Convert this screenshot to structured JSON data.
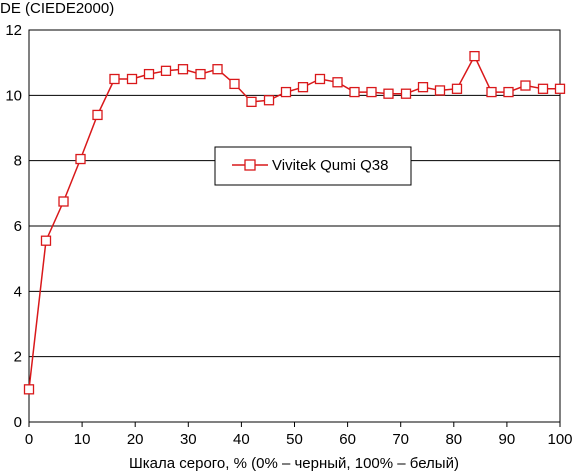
{
  "chart_data": {
    "type": "line",
    "ylabel": "DE (CIEDE2000)",
    "xlabel": "Шкала серого, % (0% – черный, 100% – белый)",
    "xlim": [
      0,
      100
    ],
    "ylim": [
      0,
      12
    ],
    "xticks": [
      0,
      10,
      20,
      30,
      40,
      50,
      60,
      70,
      80,
      90,
      100
    ],
    "yticks": [
      0,
      2,
      4,
      6,
      8,
      10,
      12
    ],
    "grid": "horizontal",
    "legend_position": "center",
    "series": [
      {
        "name": "Vivitek Qumi Q38",
        "color": "#d9181a",
        "marker": "square",
        "x": [
          0,
          3.2,
          6.5,
          9.7,
          12.9,
          16.1,
          19.4,
          22.6,
          25.8,
          29.0,
          32.3,
          35.5,
          38.7,
          41.9,
          45.2,
          48.4,
          51.6,
          54.8,
          58.1,
          61.3,
          64.5,
          67.7,
          71.0,
          74.2,
          77.4,
          80.6,
          83.9,
          87.1,
          90.3,
          93.5,
          96.8,
          100
        ],
        "y": [
          1.0,
          5.55,
          6.75,
          8.05,
          9.4,
          10.5,
          10.5,
          10.65,
          10.75,
          10.8,
          10.65,
          10.8,
          10.35,
          9.8,
          9.85,
          10.1,
          10.25,
          10.5,
          10.4,
          10.1,
          10.1,
          10.05,
          10.05,
          10.25,
          10.15,
          10.2,
          11.2,
          10.1,
          10.1,
          10.3,
          10.2,
          10.2
        ]
      }
    ]
  }
}
